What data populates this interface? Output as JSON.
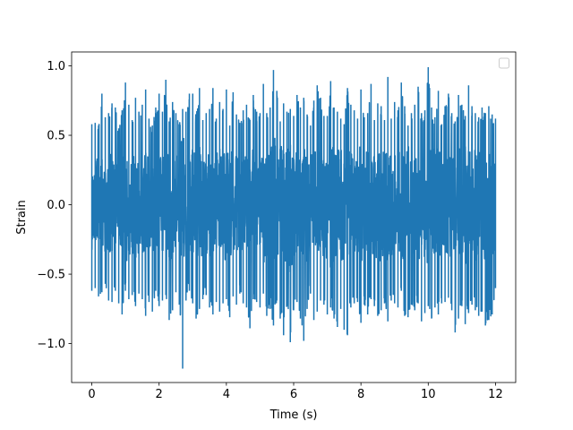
{
  "chart_data": {
    "type": "line",
    "title": "",
    "xlabel": "Time (s)",
    "ylabel": "Strain",
    "xlim": [
      -0.6,
      12.6
    ],
    "ylim": [
      -1.28,
      1.1
    ],
    "xticks": [
      0,
      2,
      4,
      6,
      8,
      10,
      12
    ],
    "xtick_labels": [
      "0",
      "2",
      "4",
      "6",
      "8",
      "10",
      "12"
    ],
    "yticks": [
      -1.0,
      -0.5,
      0.0,
      0.5,
      1.0
    ],
    "ytick_labels": [
      "−1.0",
      "−0.5",
      "0.0",
      "0.5",
      "1.0"
    ],
    "grid": false,
    "legend": {
      "placement": "top-right",
      "entries": []
    },
    "series": [
      {
        "color": "#1f77b4",
        "x": [
          0.0,
          0.1,
          0.2,
          0.3,
          0.4,
          0.5,
          0.6,
          0.7,
          0.8,
          0.9,
          1.0,
          1.1,
          1.2,
          1.3,
          1.4,
          1.5,
          1.6,
          1.7,
          1.8,
          1.9,
          2.0,
          2.1,
          2.2,
          2.3,
          2.4,
          2.5,
          2.6,
          2.7,
          2.8,
          2.9,
          3.0,
          3.1,
          3.2,
          3.3,
          3.4,
          3.5,
          3.6,
          3.7,
          3.8,
          3.9,
          4.0,
          4.1,
          4.2,
          4.3,
          4.4,
          4.5,
          4.6,
          4.7,
          4.8,
          4.9,
          5.0,
          5.1,
          5.2,
          5.3,
          5.4,
          5.5,
          5.6,
          5.7,
          5.8,
          5.9,
          6.0,
          6.1,
          6.2,
          6.3,
          6.4,
          6.5,
          6.6,
          6.7,
          6.8,
          6.9,
          7.0,
          7.1,
          7.2,
          7.3,
          7.4,
          7.5,
          7.6,
          7.7,
          7.8,
          7.9,
          8.0,
          8.1,
          8.2,
          8.3,
          8.4,
          8.5,
          8.6,
          8.7,
          8.8,
          8.9,
          9.0,
          9.1,
          9.2,
          9.3,
          9.4,
          9.5,
          9.6,
          9.7,
          9.8,
          9.9,
          10.0,
          10.1,
          10.2,
          10.3,
          10.4,
          10.5,
          10.6,
          10.7,
          10.8,
          10.9,
          11.0,
          11.1,
          11.2,
          11.3,
          11.4,
          11.5,
          11.6,
          11.7,
          11.8,
          11.9,
          12.0
        ],
        "max": [
          0.58,
          0.59,
          0.57,
          0.8,
          0.63,
          0.66,
          0.73,
          0.7,
          0.55,
          0.68,
          0.88,
          0.72,
          0.61,
          0.77,
          0.67,
          0.72,
          0.83,
          0.62,
          0.57,
          0.7,
          0.8,
          0.67,
          0.9,
          0.6,
          0.74,
          0.66,
          0.58,
          0.69,
          0.67,
          0.8,
          0.8,
          0.65,
          0.84,
          0.61,
          0.66,
          0.69,
          0.84,
          0.62,
          0.74,
          0.69,
          0.83,
          0.57,
          0.81,
          0.65,
          0.59,
          0.68,
          0.72,
          0.61,
          0.79,
          0.67,
          0.66,
          0.87,
          0.66,
          0.7,
          0.97,
          0.82,
          0.6,
          0.73,
          0.67,
          0.69,
          0.64,
          0.79,
          0.7,
          0.77,
          0.65,
          0.57,
          0.75,
          0.86,
          0.77,
          0.64,
          0.64,
          0.89,
          0.7,
          0.67,
          0.62,
          0.58,
          0.84,
          0.72,
          0.68,
          0.62,
          0.83,
          0.63,
          0.66,
          0.87,
          0.61,
          0.73,
          0.71,
          0.61,
          0.92,
          0.62,
          0.74,
          0.68,
          0.88,
          0.71,
          0.57,
          0.66,
          0.72,
          0.85,
          0.66,
          0.68,
          0.99,
          0.7,
          0.63,
          0.82,
          0.58,
          0.71,
          0.8,
          0.66,
          0.6,
          0.79,
          0.72,
          0.64,
          0.86,
          0.71,
          0.66,
          0.63,
          0.7,
          0.66,
          0.71,
          0.65,
          0.62
        ],
        "min": [
          -0.62,
          -0.6,
          -0.66,
          -0.63,
          -0.57,
          -0.69,
          -0.7,
          -0.62,
          -0.71,
          -0.79,
          -0.62,
          -0.68,
          -0.65,
          -0.73,
          -0.64,
          -0.68,
          -0.8,
          -0.7,
          -0.77,
          -0.62,
          -0.73,
          -0.69,
          -0.65,
          -0.83,
          -0.76,
          -0.63,
          -0.72,
          -1.18,
          -0.69,
          -0.62,
          -0.71,
          -0.82,
          -0.75,
          -0.68,
          -0.65,
          -0.74,
          -0.79,
          -0.7,
          -0.77,
          -0.71,
          -0.68,
          -0.81,
          -0.66,
          -0.72,
          -0.64,
          -0.71,
          -0.74,
          -0.89,
          -0.68,
          -0.7,
          -0.74,
          -0.64,
          -0.8,
          -0.75,
          -0.87,
          -0.69,
          -0.82,
          -0.94,
          -0.73,
          -0.99,
          -0.76,
          -0.7,
          -0.82,
          -0.98,
          -0.75,
          -0.64,
          -0.83,
          -0.77,
          -0.69,
          -0.72,
          -0.79,
          -0.74,
          -0.82,
          -0.88,
          -0.75,
          -0.9,
          -0.94,
          -0.74,
          -0.71,
          -0.7,
          -0.85,
          -0.72,
          -0.79,
          -0.68,
          -0.73,
          -0.8,
          -0.76,
          -0.71,
          -0.84,
          -0.69,
          -0.71,
          -0.74,
          -0.62,
          -0.8,
          -0.81,
          -0.72,
          -0.76,
          -0.71,
          -0.84,
          -0.78,
          -0.73,
          -0.82,
          -0.74,
          -0.79,
          -0.71,
          -0.7,
          -0.67,
          -0.76,
          -0.92,
          -0.82,
          -0.73,
          -0.86,
          -0.78,
          -0.72,
          -0.76,
          -0.8,
          -0.77,
          -0.87,
          -0.83,
          -0.79,
          -0.6
        ]
      }
    ]
  }
}
